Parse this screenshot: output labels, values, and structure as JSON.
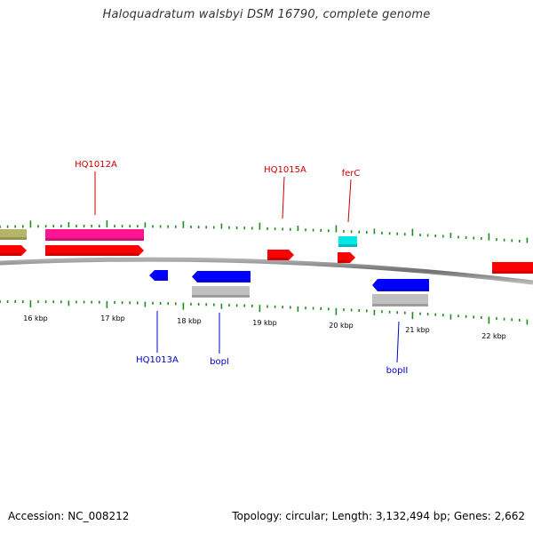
{
  "title": "Haloquadratum walsbyi DSM 16790, complete genome",
  "footer": {
    "accession": "Accession: NC_008212",
    "summary": "Topology: circular; Length: 3,132,494 bp; Genes: 2,662"
  },
  "colors": {
    "backbone": "#808080",
    "tick": "#1f8a1f",
    "forward_cds": "#ff0000",
    "reverse_cds": "#0000ff",
    "rna_or_other": "#ff1493",
    "misc_feature": "#c0c0c0",
    "olive_feature": "#b5b56a",
    "cyan_feature": "#00e5e5",
    "forward_label": "#cc0000",
    "reverse_label": "#0000cc"
  },
  "scale_labels": [
    "16 kbp",
    "17 kbp",
    "18 kbp",
    "19 kbp",
    "20 kbp",
    "21 kbp",
    "22 kbp"
  ],
  "gene_labels": {
    "forward": [
      "HQ1012A",
      "HQ1015A",
      "ferC"
    ],
    "reverse": [
      "HQ1013A",
      "bopI",
      "bopII"
    ]
  }
}
